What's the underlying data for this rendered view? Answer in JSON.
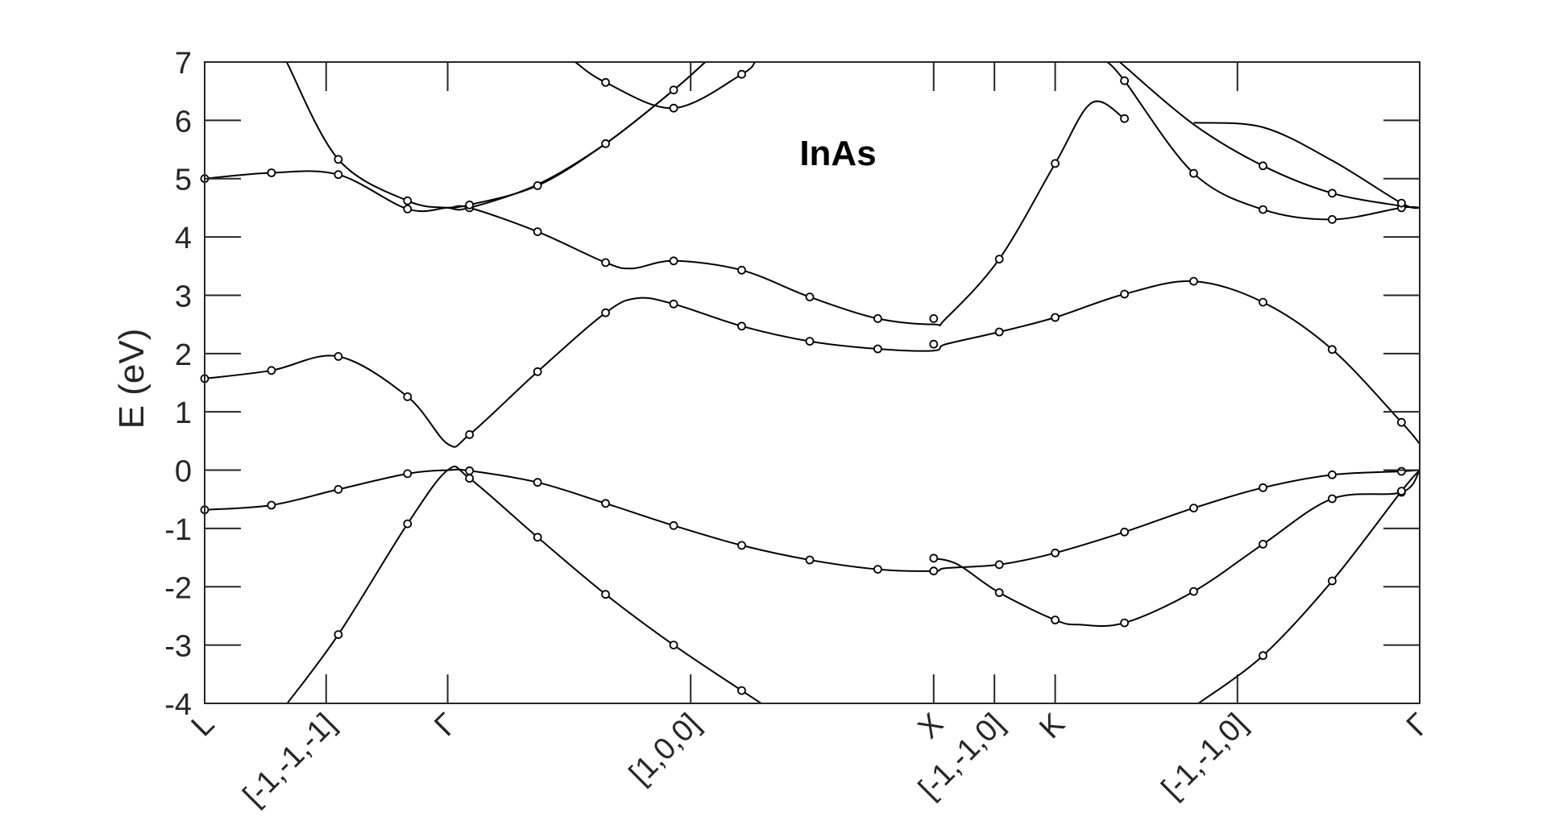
{
  "chart_data": {
    "type": "line",
    "title": "InAs",
    "ylabel": "E   (eV)",
    "ylim": [
      -4,
      7
    ],
    "yticks": [
      -4,
      -3,
      -2,
      -1,
      0,
      1,
      2,
      3,
      4,
      5,
      6,
      7
    ],
    "xlim": [
      0,
      1
    ],
    "grid": false,
    "legend": "none",
    "x_tick_positions": [
      0.0,
      0.1,
      0.2,
      0.4,
      0.6,
      0.65,
      0.7,
      0.85,
      1.0
    ],
    "x_tick_labels": [
      "L",
      "[-1,-1,-1]",
      "Γ",
      "[1,0,0]",
      "X",
      "[-1,-1,0]",
      "K",
      "[-1,-1,0]",
      "Γ"
    ],
    "series": [
      {
        "x": [
          0.0,
          0.055,
          0.11,
          0.167,
          0.2,
          0.218,
          0.274,
          0.33,
          0.386,
          0.442,
          0.498,
          0.554,
          0.6,
          0.61,
          0.654,
          0.7,
          0.757,
          0.814,
          0.871,
          0.928,
          0.985,
          1.0
        ],
        "y": [
          -0.68,
          -0.6,
          -0.33,
          -0.06,
          0.0,
          -0.01,
          -0.21,
          -0.57,
          -0.95,
          -1.29,
          -1.54,
          -1.7,
          -1.73,
          -1.68,
          -1.62,
          -1.42,
          -1.06,
          -0.65,
          -0.3,
          -0.08,
          -0.02,
          0.0
        ]
      },
      {
        "x": [
          0.068,
          0.11,
          0.167,
          0.2,
          0.218,
          0.274,
          0.33,
          0.386,
          0.442,
          0.458
        ],
        "y": [
          -4.0,
          -2.82,
          -0.92,
          0.0,
          -0.14,
          -1.15,
          -2.13,
          -3.0,
          -3.78,
          -4.0
        ]
      },
      {
        "x": [
          0.6,
          0.62,
          0.654,
          0.7,
          0.72,
          0.757,
          0.814,
          0.871,
          0.928,
          0.985,
          1.0
        ],
        "y": [
          -1.51,
          -1.62,
          -2.1,
          -2.57,
          -2.65,
          -2.62,
          -2.08,
          -1.27,
          -0.49,
          -0.38,
          0.0
        ]
      },
      {
        "x": [
          0.818,
          0.871,
          0.928,
          0.985,
          1.0
        ],
        "y": [
          -4.0,
          -3.18,
          -1.9,
          -0.36,
          0.0
        ]
      },
      {
        "x": [
          0.0,
          0.055,
          0.11,
          0.167,
          0.2,
          0.218,
          0.274,
          0.33,
          0.356,
          0.386,
          0.442,
          0.498,
          0.554,
          0.6,
          0.61,
          0.654,
          0.7,
          0.757,
          0.814,
          0.871,
          0.928,
          0.985,
          1.0
        ],
        "y": [
          1.57,
          1.71,
          1.95,
          1.26,
          0.45,
          0.61,
          1.69,
          2.7,
          2.95,
          2.85,
          2.47,
          2.21,
          2.08,
          2.05,
          2.16,
          2.37,
          2.62,
          3.02,
          3.24,
          2.88,
          2.07,
          0.82,
          0.45
        ]
      },
      {
        "x": [
          0.0,
          0.055,
          0.11,
          0.167,
          0.2,
          0.218,
          0.274,
          0.33,
          0.352,
          0.386,
          0.442,
          0.498,
          0.554,
          0.6,
          0.61,
          0.654,
          0.7,
          0.73,
          0.757
        ],
        "y": [
          5.0,
          5.1,
          5.07,
          4.48,
          4.5,
          4.5,
          4.09,
          3.56,
          3.46,
          3.59,
          3.43,
          2.97,
          2.6,
          2.5,
          2.6,
          3.62,
          5.26,
          6.3,
          6.03
        ]
      },
      {
        "x": [
          0.0675,
          0.11,
          0.167,
          0.2,
          0.218,
          0.274,
          0.33,
          0.386,
          0.412
        ],
        "y": [
          7.0,
          5.33,
          4.62,
          4.5,
          4.5,
          4.9,
          5.6,
          6.52,
          7.0
        ]
      },
      {
        "x": [
          0.2,
          0.218,
          0.274,
          0.33,
          0.386,
          0.412
        ],
        "y": [
          4.5,
          4.55,
          4.88,
          5.6,
          6.52,
          7.0
        ]
      },
      {
        "x": [
          0.305,
          0.33,
          0.386,
          0.442,
          0.453
        ],
        "y": [
          7.0,
          6.65,
          6.21,
          6.79,
          7.0
        ]
      },
      {
        "x": [
          0.743,
          0.757,
          0.814,
          0.871,
          0.928,
          0.985,
          1.0
        ],
        "y": [
          7.0,
          6.68,
          5.09,
          4.47,
          4.3,
          4.5,
          4.5
        ]
      },
      {
        "x": [
          0.754,
          0.757,
          0.814,
          0.871,
          0.928,
          0.985,
          1.0
        ],
        "y": [
          7.0,
          6.93,
          5.93,
          5.22,
          4.75,
          4.53,
          4.5
        ]
      },
      {
        "x": [
          0.814,
          0.871,
          0.928,
          0.985,
          1.0
        ],
        "y": [
          5.96,
          5.88,
          5.31,
          4.58,
          4.5
        ]
      }
    ],
    "markers": {
      "x": [
        0.0,
        0.055,
        0.11,
        0.167,
        0.218,
        0.274,
        0.33,
        0.386,
        0.442,
        0.498,
        0.554,
        0.6,
        0.654,
        0.7,
        0.757,
        0.814,
        0.871,
        0.928,
        0.985,
        0.11,
        0.167,
        0.218,
        0.274,
        0.33,
        0.386,
        0.442,
        0.6,
        0.654,
        0.7,
        0.757,
        0.814,
        0.871,
        0.928,
        0.985,
        0.871,
        0.928,
        0.985,
        0.0,
        0.055,
        0.11,
        0.167,
        0.218,
        0.274,
        0.33,
        0.386,
        0.442,
        0.498,
        0.554,
        0.6,
        0.654,
        0.7,
        0.757,
        0.814,
        0.871,
        0.928,
        0.985,
        0.0,
        0.055,
        0.11,
        0.167,
        0.218,
        0.274,
        0.33,
        0.386,
        0.442,
        0.498,
        0.554,
        0.6,
        0.654,
        0.7,
        0.757,
        0.11,
        0.167,
        0.218,
        0.274,
        0.33,
        0.386,
        0.33,
        0.386,
        0.442,
        0.757,
        0.814,
        0.871,
        0.928,
        0.985,
        0.871,
        0.928,
        0.985
      ],
      "y": [
        -0.68,
        -0.6,
        -0.33,
        -0.06,
        -0.01,
        -0.21,
        -0.57,
        -0.95,
        -1.29,
        -1.54,
        -1.7,
        -1.73,
        -1.62,
        -1.42,
        -1.06,
        -0.65,
        -0.3,
        -0.08,
        -0.02,
        -2.82,
        -0.92,
        -0.14,
        -1.15,
        -2.13,
        -3.0,
        -3.78,
        -1.51,
        -2.1,
        -2.57,
        -2.62,
        -2.08,
        -1.27,
        -0.49,
        -0.38,
        -3.18,
        -1.9,
        -0.36,
        1.57,
        1.71,
        1.95,
        1.26,
        0.61,
        1.69,
        2.7,
        2.85,
        2.47,
        2.21,
        2.08,
        2.16,
        2.37,
        2.62,
        3.02,
        3.24,
        2.88,
        2.07,
        0.82,
        5.0,
        5.1,
        5.07,
        4.48,
        4.5,
        4.09,
        3.56,
        3.59,
        3.43,
        2.97,
        2.6,
        2.6,
        3.62,
        5.26,
        6.03,
        5.33,
        4.62,
        4.55,
        4.88,
        5.6,
        6.52,
        6.65,
        6.21,
        6.79,
        6.68,
        5.09,
        4.47,
        4.3,
        4.5,
        5.22,
        4.75,
        4.58
      ]
    }
  }
}
